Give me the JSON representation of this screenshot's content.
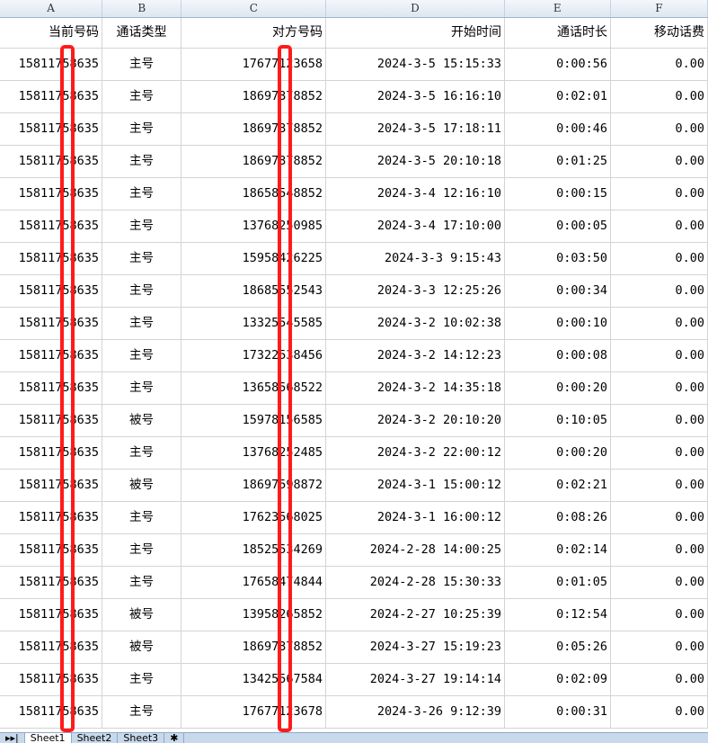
{
  "columns": [
    "A",
    "B",
    "C",
    "D",
    "E",
    "F"
  ],
  "headers": [
    "当前号码",
    "通话类型",
    "对方号码",
    "开始时间",
    "通话时长",
    "移动话费"
  ],
  "rows": [
    [
      "15811758635",
      "主号",
      "17677123658",
      "2024-3-5 15:15:33",
      "0:00:56",
      "0.00"
    ],
    [
      "15811758635",
      "主号",
      "18697378852",
      "2024-3-5 16:16:10",
      "0:02:01",
      "0.00"
    ],
    [
      "15811758635",
      "主号",
      "18697378852",
      "2024-3-5 17:18:11",
      "0:00:46",
      "0.00"
    ],
    [
      "15811758635",
      "主号",
      "18697378852",
      "2024-3-5 20:10:18",
      "0:01:25",
      "0.00"
    ],
    [
      "15811758635",
      "主号",
      "18658548852",
      "2024-3-4 12:16:10",
      "0:00:15",
      "0.00"
    ],
    [
      "15811758635",
      "主号",
      "13768250985",
      "2024-3-4 17:10:00",
      "0:00:05",
      "0.00"
    ],
    [
      "15811758635",
      "主号",
      "15958426225",
      "2024-3-3 9:15:43",
      "0:03:50",
      "0.00"
    ],
    [
      "15811758635",
      "主号",
      "18685552543",
      "2024-3-3 12:25:26",
      "0:00:34",
      "0.00"
    ],
    [
      "15811758635",
      "主号",
      "13325545585",
      "2024-3-2 10:02:38",
      "0:00:10",
      "0.00"
    ],
    [
      "15811758635",
      "主号",
      "17322538456",
      "2024-3-2 14:12:23",
      "0:00:08",
      "0.00"
    ],
    [
      "15811758635",
      "主号",
      "13658568522",
      "2024-3-2 14:35:18",
      "0:00:20",
      "0.00"
    ],
    [
      "15811758635",
      "被号",
      "15978156585",
      "2024-3-2 20:10:20",
      "0:10:05",
      "0.00"
    ],
    [
      "15811758635",
      "主号",
      "13768252485",
      "2024-3-2 22:00:12",
      "0:00:20",
      "0.00"
    ],
    [
      "15811758635",
      "被号",
      "18697598872",
      "2024-3-1 15:00:12",
      "0:02:21",
      "0.00"
    ],
    [
      "15811758635",
      "主号",
      "17623568025",
      "2024-3-1 16:00:12",
      "0:08:26",
      "0.00"
    ],
    [
      "15811758635",
      "主号",
      "18525534269",
      "2024-2-28 14:00:25",
      "0:02:14",
      "0.00"
    ],
    [
      "15811758635",
      "主号",
      "17658474844",
      "2024-2-28 15:30:33",
      "0:01:05",
      "0.00"
    ],
    [
      "15811758635",
      "被号",
      "13958265852",
      "2024-2-27 10:25:39",
      "0:12:54",
      "0.00"
    ],
    [
      "15811758635",
      "被号",
      "18697378852",
      "2024-3-27 15:19:23",
      "0:05:26",
      "0.00"
    ],
    [
      "15811758635",
      "主号",
      "13425567584",
      "2024-3-27 19:14:14",
      "0:02:09",
      "0.00"
    ],
    [
      "15811758635",
      "主号",
      "17677123678",
      "2024-3-26 9:12:39",
      "0:00:31",
      "0.00"
    ]
  ],
  "sheet_tabs": [
    "Sheet1",
    "Sheet2",
    "Sheet3"
  ],
  "redaction_color": "#ff1a1a"
}
